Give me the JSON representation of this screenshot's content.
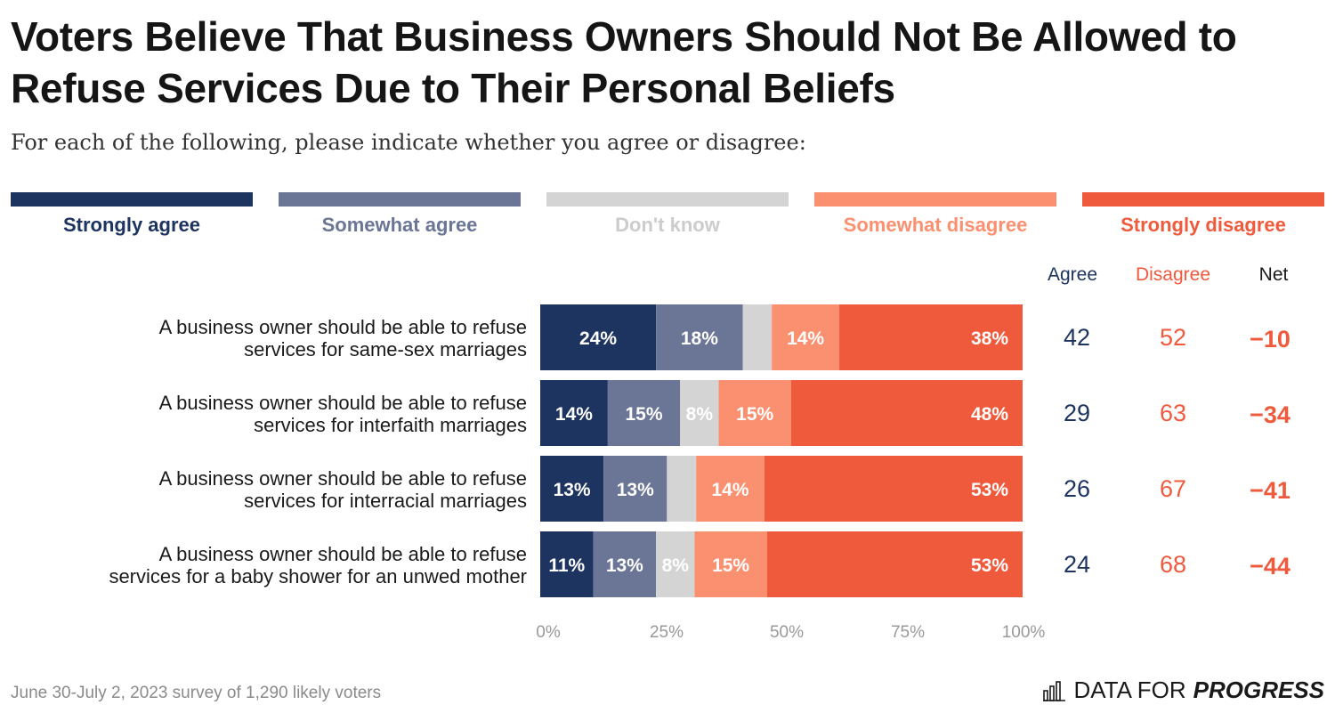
{
  "title": "Voters Believe That Business Owners Should Not Be Allowed to Refuse Services Due to Their Personal Beliefs",
  "subtitle": "For each of the following, please indicate whether you agree or disagree:",
  "footnote": "June 30-July 2, 2023 survey of 1,290 likely voters",
  "brand": {
    "prefix": "DATA FOR",
    "bold": "PROGRESS",
    "icon": "bar-chart-icon"
  },
  "columns": {
    "agree": "Agree",
    "disagree": "Disagree",
    "net": "Net"
  },
  "colors": {
    "strongly_agree": "#1d3461",
    "somewhat_agree": "#6b7596",
    "dont_know": "#d4d4d4",
    "somewhat_disagree": "#fb9070",
    "strongly_disagree": "#f05a3c",
    "dont_know_label": "#cccccc"
  },
  "chart_data": {
    "type": "bar",
    "orientation": "horizontal-stacked",
    "categories": [
      "A business owner should be able to refuse services for same-sex marriages",
      "A business owner should be able to refuse services for interfaith marriages",
      "A business owner should be able to refuse services for interracial marriages",
      "A business owner should be able to refuse services for a baby shower for an unwed mother"
    ],
    "category_lines": [
      [
        "A business owner should be able to refuse",
        "services for same-sex marriages"
      ],
      [
        "A business owner should be able to refuse",
        "services for interfaith marriages"
      ],
      [
        "A business owner should be able to refuse",
        "services for interracial marriages"
      ],
      [
        "A business owner should be able to refuse",
        "services for a baby shower for an unwed mother"
      ]
    ],
    "series": [
      {
        "name": "Strongly agree",
        "values": [
          24,
          14,
          13,
          11
        ],
        "labels": [
          "24%",
          "14%",
          "13%",
          "11%"
        ]
      },
      {
        "name": "Somewhat agree",
        "values": [
          18,
          15,
          13,
          13
        ],
        "labels": [
          "18%",
          "15%",
          "13%",
          "13%"
        ]
      },
      {
        "name": "Don't know",
        "values": [
          6,
          8,
          6,
          8
        ],
        "labels": [
          "",
          "8%",
          "",
          "8%"
        ]
      },
      {
        "name": "Somewhat disagree",
        "values": [
          14,
          15,
          14,
          15
        ],
        "labels": [
          "14%",
          "15%",
          "14%",
          "15%"
        ]
      },
      {
        "name": "Strongly disagree",
        "values": [
          38,
          48,
          53,
          53
        ],
        "labels": [
          "38%",
          "48%",
          "53%",
          "53%"
        ]
      }
    ],
    "agree": [
      42,
      29,
      26,
      24
    ],
    "disagree": [
      52,
      63,
      67,
      68
    ],
    "net": [
      "−10",
      "−34",
      "−41",
      "−44"
    ],
    "xticks": [
      "0%",
      "25%",
      "50%",
      "75%",
      "100%"
    ],
    "xlim": [
      0,
      100
    ],
    "legend": "top",
    "grid": false
  }
}
